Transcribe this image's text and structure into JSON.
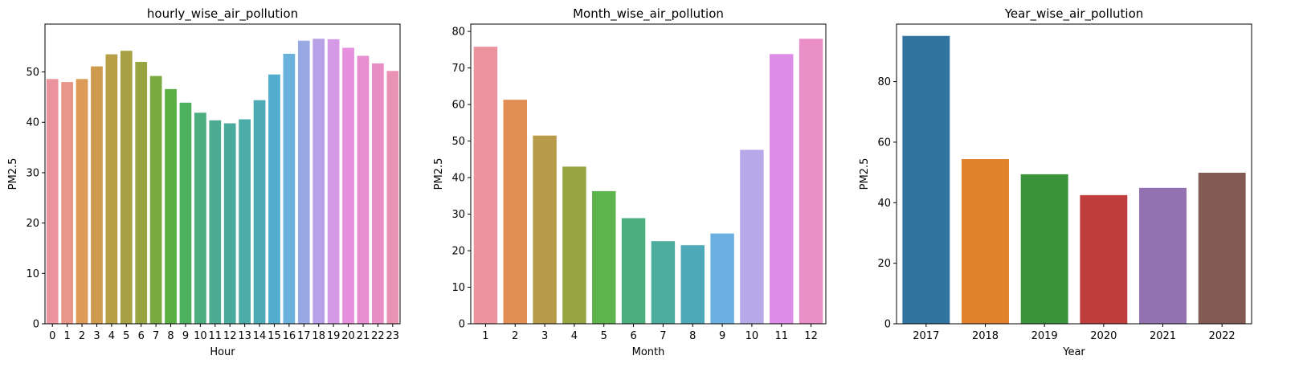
{
  "chart_data": [
    {
      "type": "bar",
      "title": "hourly_wise_air_pollution",
      "xlabel": "Hour",
      "ylabel": "PM2.5",
      "ylim": [
        0,
        59.5
      ],
      "yticks": [
        0,
        10,
        20,
        30,
        40,
        50
      ],
      "grid": false,
      "categories": [
        "0",
        "1",
        "2",
        "3",
        "4",
        "5",
        "6",
        "7",
        "8",
        "9",
        "10",
        "11",
        "12",
        "13",
        "14",
        "15",
        "16",
        "17",
        "18",
        "19",
        "20",
        "21",
        "22",
        "23"
      ],
      "values": [
        48.6,
        48.0,
        48.6,
        51.1,
        53.5,
        54.2,
        52.0,
        49.2,
        46.6,
        43.9,
        41.9,
        40.4,
        39.8,
        40.6,
        44.4,
        49.5,
        53.6,
        56.2,
        56.6,
        56.5,
        54.8,
        53.2,
        51.7,
        50.2
      ],
      "colors": [
        "#eb939f",
        "#e8958a",
        "#dc9b57",
        "#ce9b4e",
        "#b79f45",
        "#a7a143",
        "#96a441",
        "#7aa940",
        "#5aae42",
        "#4cb05f",
        "#4cae7e",
        "#4cac92",
        "#4aab9d",
        "#4baba7",
        "#4cabb4",
        "#51adcb",
        "#6ab1dc",
        "#98a9e4",
        "#b9a1e7",
        "#d59ae6",
        "#e690de",
        "#e68ed0",
        "#e88ec4",
        "#ea92b3"
      ]
    },
    {
      "type": "bar",
      "title": "Month_wise_air_pollution",
      "xlabel": "Month",
      "ylabel": "PM2.5",
      "ylim": [
        0,
        82
      ],
      "yticks": [
        0,
        10,
        20,
        30,
        40,
        50,
        60,
        70,
        80
      ],
      "grid": false,
      "categories": [
        "1",
        "2",
        "3",
        "4",
        "5",
        "6",
        "7",
        "8",
        "9",
        "10",
        "11",
        "12"
      ],
      "values": [
        75.8,
        61.3,
        51.5,
        43.0,
        36.3,
        28.9,
        22.6,
        21.5,
        24.7,
        47.6,
        73.8,
        78.0
      ],
      "colors": [
        "#eb939f",
        "#e28f55",
        "#b79b49",
        "#96a441",
        "#5db34c",
        "#4cae7e",
        "#4cac9e",
        "#4da9b7",
        "#6cb0e2",
        "#b7a8ea",
        "#dd8de6",
        "#e98ec6"
      ]
    },
    {
      "type": "bar",
      "title": "Year_wise_air_pollution",
      "xlabel": "Year",
      "ylabel": "PM2.5",
      "ylim": [
        0,
        99
      ],
      "yticks": [
        0,
        20,
        40,
        60,
        80
      ],
      "grid": false,
      "categories": [
        "2017",
        "2018",
        "2019",
        "2020",
        "2021",
        "2022"
      ],
      "values": [
        95.1,
        54.4,
        49.4,
        42.5,
        44.9,
        49.9
      ],
      "colors": [
        "#3274a1",
        "#e1812c",
        "#3a923a",
        "#c03d3e",
        "#9372b2",
        "#845b53"
      ]
    }
  ]
}
